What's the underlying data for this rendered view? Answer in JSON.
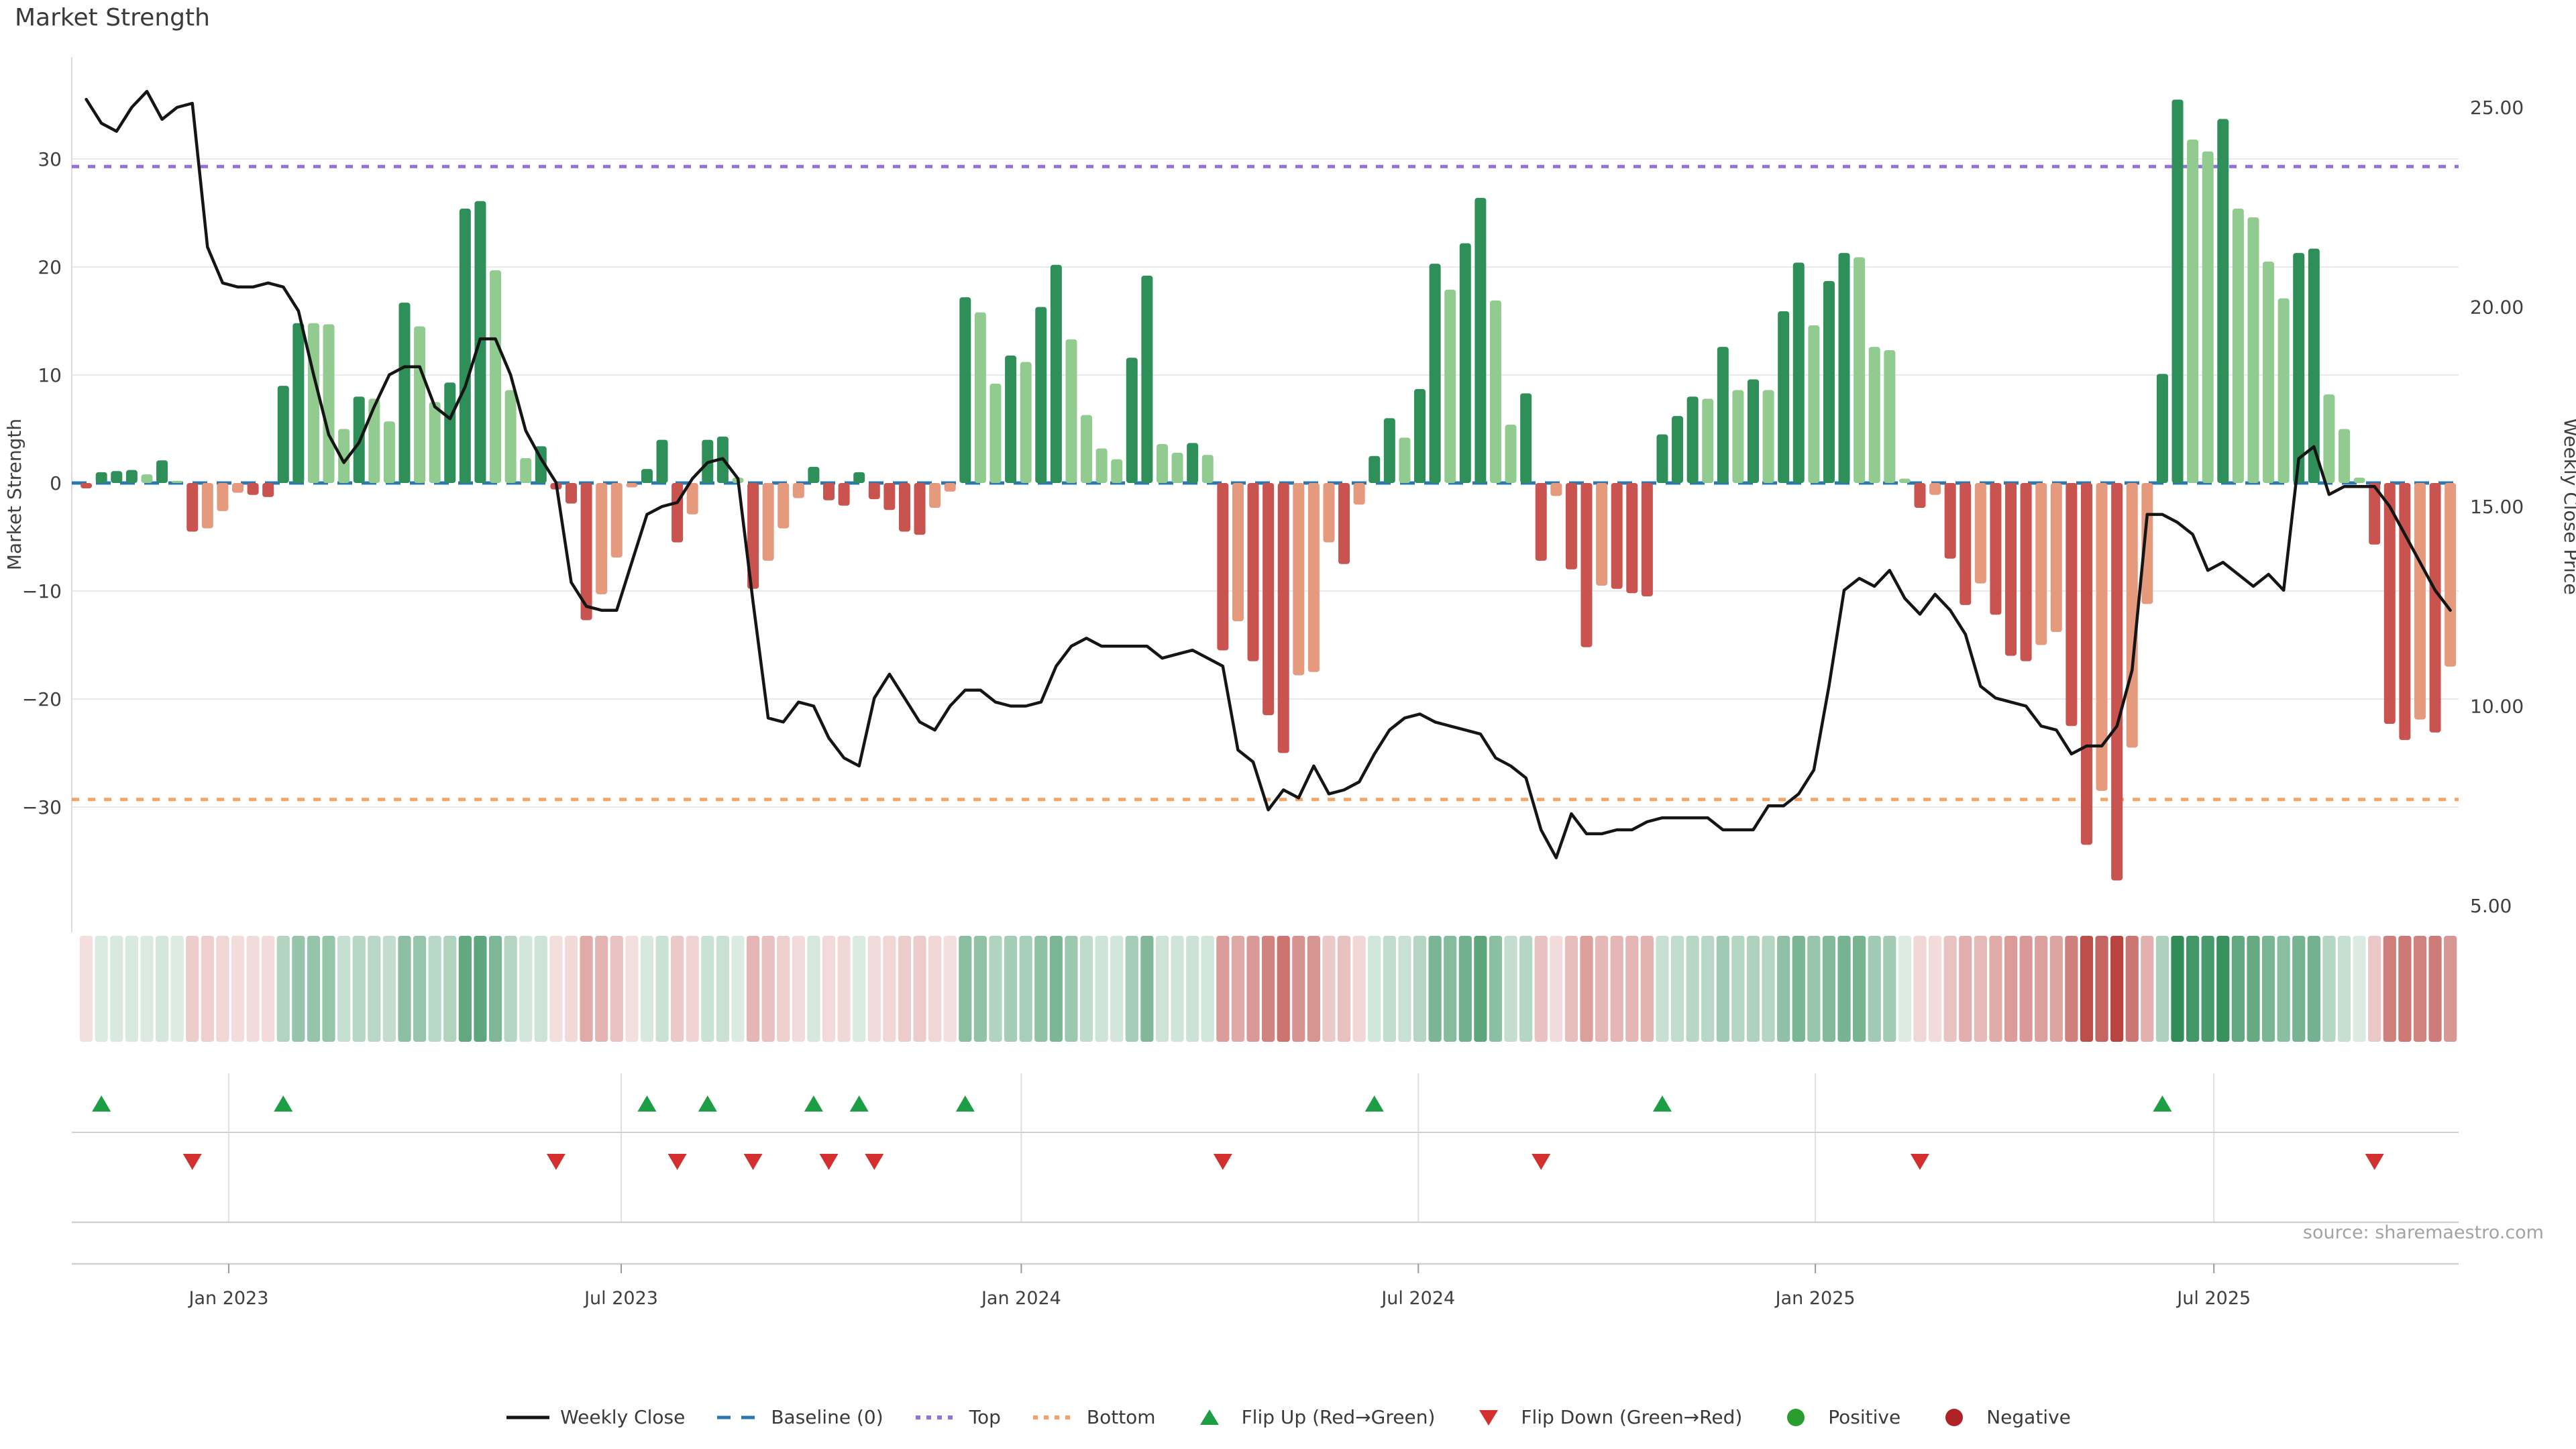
{
  "title": "Market Strength",
  "source": "source: sharemaestro.com",
  "axes": {
    "left_label": "Market Strength",
    "right_label": "Weekly Close Price",
    "left_ticks": [
      {
        "value": 30,
        "label": "30"
      },
      {
        "value": 20,
        "label": "20"
      },
      {
        "value": 10,
        "label": "10"
      },
      {
        "value": 0,
        "label": "0"
      },
      {
        "value": -10,
        "label": "−10"
      },
      {
        "value": -20,
        "label": "−20"
      },
      {
        "value": -30,
        "label": "−30"
      }
    ],
    "right_ticks": [
      {
        "value": 25,
        "label": "25.00"
      },
      {
        "value": 20,
        "label": "20.00"
      },
      {
        "value": 15,
        "label": "15.00"
      },
      {
        "value": 10,
        "label": "10.00"
      },
      {
        "value": 5,
        "label": "5.00"
      }
    ],
    "x_ticks": [
      {
        "label": "Jan 2023",
        "week": 9.4
      },
      {
        "label": "Jul 2023",
        "week": 35.3
      },
      {
        "label": "Jan 2024",
        "week": 61.7
      },
      {
        "label": "Jul 2024",
        "week": 87.9
      },
      {
        "label": "Jan 2025",
        "week": 114.1
      },
      {
        "label": "Jul 2025",
        "week": 140.4
      }
    ]
  },
  "chart_data": {
    "type": "combo-bar-line-heatmap",
    "x_unit": "week",
    "n_weeks": 157,
    "grid": "horizontal-only",
    "legend_position": "bottom",
    "left_ylim": [
      -42,
      40
    ],
    "right_ylim": [
      4.3,
      26.3
    ],
    "baseline": 0,
    "top_line": 29.3,
    "bottom_line": -29.3,
    "series": [
      {
        "name": "Market Strength",
        "type": "bar",
        "values": [
          -0.5,
          1.0,
          1.1,
          1.2,
          0.8,
          2.1,
          0.2,
          -4.5,
          -4.2,
          -2.6,
          -0.9,
          -1.1,
          -1.3,
          9.0,
          14.8,
          14.8,
          14.7,
          5.0,
          8.0,
          7.8,
          5.7,
          16.7,
          14.5,
          7.5,
          9.3,
          25.4,
          26.1,
          19.7,
          8.6,
          2.3,
          3.4,
          -0.6,
          -1.9,
          -12.7,
          -10.3,
          -6.9,
          -0.4,
          1.3,
          4.0,
          -5.5,
          -2.9,
          4.0,
          4.3,
          0.5,
          -9.8,
          -7.2,
          -4.2,
          -1.4,
          1.5,
          -1.6,
          -2.1,
          1.0,
          -1.5,
          -2.5,
          -4.5,
          -4.8,
          -2.3,
          -0.8,
          17.2,
          15.8,
          9.2,
          11.8,
          11.2,
          16.3,
          20.2,
          13.3,
          6.3,
          3.2,
          2.2,
          11.6,
          19.2,
          3.6,
          2.8,
          3.7,
          2.6,
          -15.5,
          -12.8,
          -16.5,
          -21.5,
          -25.0,
          -17.8,
          -17.5,
          -5.5,
          -7.5,
          -2.0,
          2.5,
          6.0,
          4.2,
          8.7,
          20.3,
          17.9,
          22.2,
          26.4,
          16.9,
          5.4,
          8.3,
          -7.2,
          -1.2,
          -8.0,
          -15.2,
          -9.5,
          -9.8,
          -10.2,
          -10.5,
          4.5,
          6.2,
          8.0,
          7.8,
          12.6,
          8.6,
          9.6,
          8.6,
          15.9,
          20.4,
          14.6,
          18.7,
          21.3,
          20.9,
          12.6,
          12.3,
          0.4,
          -2.3,
          -1.1,
          -7.0,
          -11.3,
          -9.3,
          -12.2,
          -16.0,
          -16.5,
          -15.0,
          -13.8,
          -22.5,
          -33.5,
          -28.5,
          -36.8,
          -24.5,
          -11.2,
          10.1,
          35.5,
          31.8,
          30.7,
          33.7,
          25.4,
          24.6,
          20.5,
          17.1,
          21.3,
          21.7,
          8.2,
          5.0,
          0.5,
          -5.7,
          -22.3,
          -23.8,
          -21.9,
          -23.1,
          -17.0
        ]
      },
      {
        "name": "Weekly Close",
        "type": "line",
        "values": [
          25.2,
          24.6,
          24.4,
          25.0,
          25.4,
          24.7,
          25.0,
          25.1,
          21.5,
          20.6,
          20.5,
          20.5,
          20.6,
          20.5,
          19.9,
          18.3,
          16.8,
          16.1,
          16.6,
          17.5,
          18.3,
          18.5,
          18.5,
          17.5,
          17.2,
          18.0,
          19.2,
          19.2,
          18.3,
          16.9,
          16.2,
          15.6,
          13.1,
          12.5,
          12.4,
          12.4,
          13.6,
          14.8,
          15.0,
          15.1,
          15.7,
          16.1,
          16.2,
          15.7,
          12.6,
          9.7,
          9.6,
          10.1,
          10.0,
          9.2,
          8.7,
          8.5,
          10.2,
          10.8,
          10.2,
          9.6,
          9.4,
          10.0,
          10.4,
          10.4,
          10.1,
          10.0,
          10.0,
          10.1,
          11.0,
          11.5,
          11.7,
          11.5,
          11.5,
          11.5,
          11.5,
          11.2,
          11.3,
          11.4,
          11.2,
          11.0,
          8.9,
          8.6,
          7.4,
          7.9,
          7.7,
          8.5,
          7.8,
          7.9,
          8.1,
          8.8,
          9.4,
          9.7,
          9.8,
          9.6,
          9.5,
          9.4,
          9.3,
          8.7,
          8.5,
          8.2,
          6.9,
          6.2,
          7.3,
          6.8,
          6.8,
          6.9,
          6.9,
          7.1,
          7.2,
          7.2,
          7.2,
          7.2,
          6.9,
          6.9,
          6.9,
          7.5,
          7.5,
          7.8,
          8.4,
          10.5,
          12.9,
          13.2,
          13.0,
          13.4,
          12.7,
          12.3,
          12.8,
          12.4,
          11.8,
          10.5,
          10.2,
          10.1,
          10.0,
          9.5,
          9.4,
          8.8,
          9.0,
          9.0,
          9.5,
          10.9,
          14.8,
          14.8,
          14.6,
          14.3,
          13.4,
          13.6,
          13.3,
          13.0,
          13.3,
          12.9,
          16.2,
          16.5,
          15.3,
          15.5,
          15.5,
          15.5,
          15.0,
          14.3,
          13.6,
          12.9,
          12.4
        ]
      }
    ],
    "heatmap_strip": "same weekly strength values, green/red intensity by magnitude",
    "flip_up_weeks": [
      1,
      13,
      37,
      41,
      48,
      51,
      58,
      85,
      104,
      137
    ],
    "flip_down_weeks": [
      7,
      31,
      39,
      44,
      49,
      52,
      75,
      96,
      121,
      151
    ]
  },
  "colors": {
    "positive_dark": "#2e8f58",
    "positive_light": "#92cb90",
    "negative_dark": "#c9534f",
    "negative_light": "#e59a7e",
    "strip_green_base": "#2e8b57",
    "strip_red_base": "#b9443f",
    "line": "#151515",
    "baseline": "#2878b4",
    "top_line": "#9370db",
    "bottom_line": "#f2a36a",
    "flip_up": "#1e9e44",
    "flip_down": "#d32f2f",
    "positive_dot": "#2a9d2f",
    "negative_dot": "#b02226",
    "grid": "#e9e9ef",
    "spine": "#cfcfd5",
    "tick_text": "#3f3f3f"
  },
  "legend": {
    "items": [
      {
        "label": "Weekly Close",
        "swatch": "line",
        "color": "#151515"
      },
      {
        "label": "Baseline (0)",
        "swatch": "dashed",
        "color": "#2878b4"
      },
      {
        "label": "Top",
        "swatch": "dotted",
        "color": "#9370db"
      },
      {
        "label": "Bottom",
        "swatch": "dotted",
        "color": "#f2a36a"
      },
      {
        "label": "Flip Up (Red→Green)",
        "swatch": "triangle-up",
        "color": "#1e9e44"
      },
      {
        "label": "Flip Down (Green→Red)",
        "swatch": "triangle-down",
        "color": "#d32f2f"
      },
      {
        "label": "Positive",
        "swatch": "dot",
        "color": "#2a9d2f"
      },
      {
        "label": "Negative",
        "swatch": "dot",
        "color": "#b02226"
      }
    ]
  }
}
